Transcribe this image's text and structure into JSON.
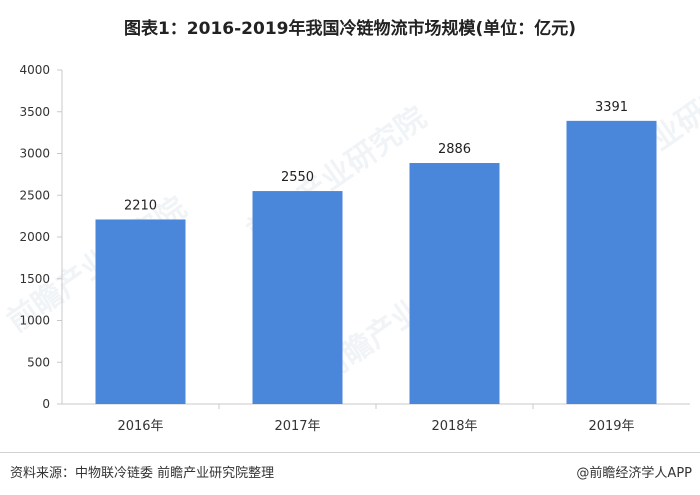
{
  "title": "图表1：2016-2019年我国冷链物流市场规模(单位：亿元)",
  "footer": {
    "source": "资料来源：中物联冷链委 前瞻产业研究院整理",
    "brand": "@前瞻经济学人APP"
  },
  "watermark": "前瞻产业研究院",
  "colors": {
    "bar": "#4a86d9",
    "axis": "#c8c8c8"
  },
  "chart_data": {
    "type": "bar",
    "categories": [
      "2016年",
      "2017年",
      "2018年",
      "2019年"
    ],
    "values": [
      2210,
      2550,
      2886,
      3391
    ],
    "ylim": [
      0,
      4000
    ],
    "yticks": [
      0,
      500,
      1000,
      1500,
      2000,
      2500,
      3000,
      3500,
      4000
    ],
    "grid": false,
    "legend": "none"
  }
}
